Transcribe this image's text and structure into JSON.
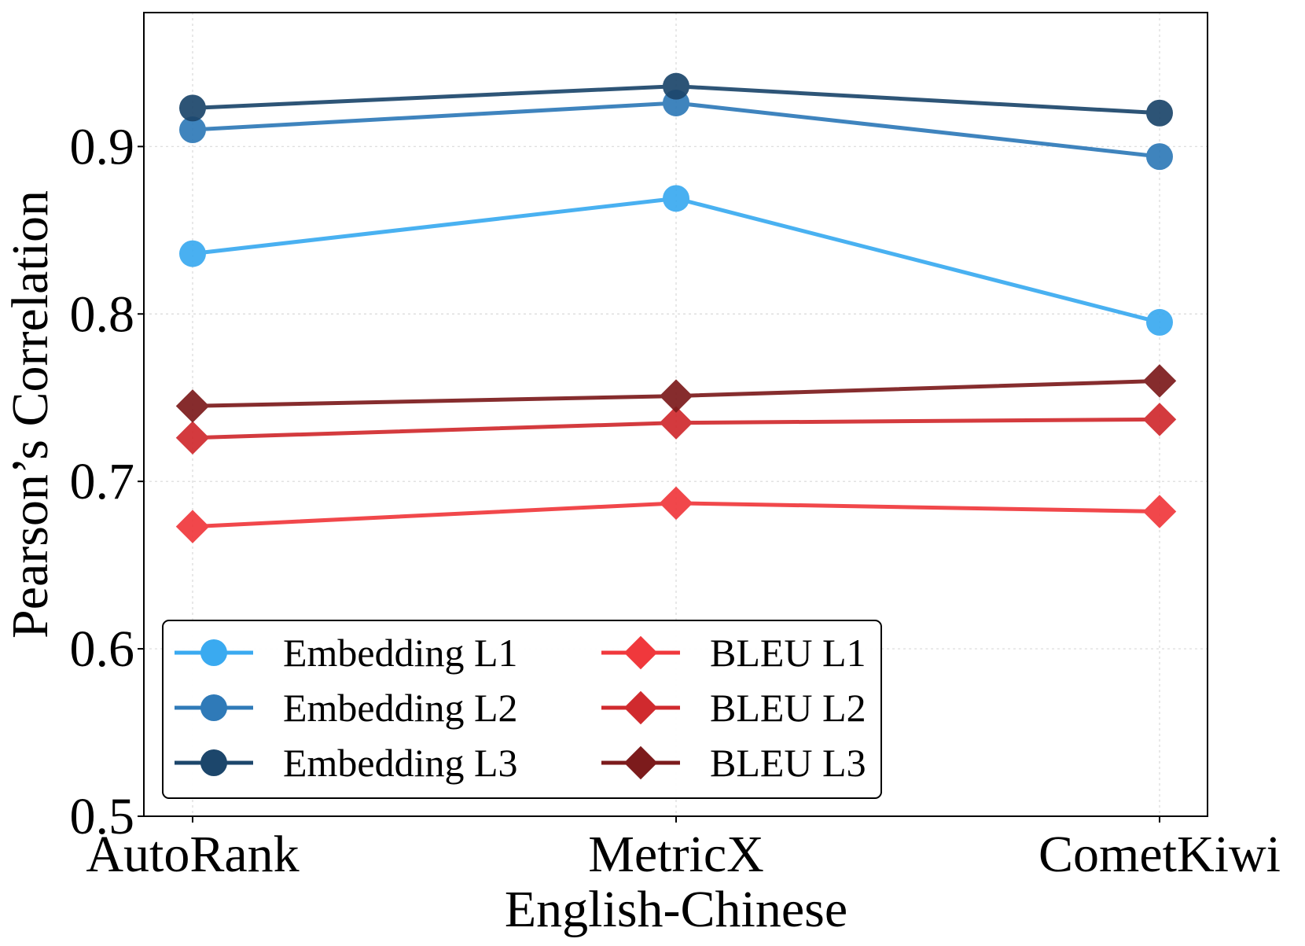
{
  "chart_data": {
    "type": "line",
    "title": "",
    "xlabel": "English-Chinese",
    "ylabel": "Pearson’s Correlation",
    "categories": [
      "AutoRank",
      "MetricX",
      "CometKiwi"
    ],
    "ylim": [
      0.5,
      0.98
    ],
    "yticks": [
      "0.5",
      "0.6",
      "0.7",
      "0.8",
      "0.9"
    ],
    "ytick_values": [
      0.5,
      0.6,
      0.7,
      0.8,
      0.9
    ],
    "grid": true,
    "legend_position": "bottom-left",
    "series": [
      {
        "name": "Embedding L1",
        "values": [
          0.836,
          0.869,
          0.795
        ],
        "color": "#3aaaf0",
        "marker": "circle"
      },
      {
        "name": "Embedding L2",
        "values": [
          0.91,
          0.926,
          0.894
        ],
        "color": "#2f7ab8",
        "marker": "circle"
      },
      {
        "name": "Embedding L3",
        "values": [
          0.923,
          0.936,
          0.92
        ],
        "color": "#1c466b",
        "marker": "circle"
      },
      {
        "name": "BLEU L1",
        "values": [
          0.673,
          0.687,
          0.682
        ],
        "color": "#f0383c",
        "marker": "diamond"
      },
      {
        "name": "BLEU L2",
        "values": [
          0.726,
          0.735,
          0.737
        ],
        "color": "#d02a2e",
        "marker": "diamond"
      },
      {
        "name": "BLEU L3",
        "values": [
          0.745,
          0.751,
          0.76
        ],
        "color": "#7c1b1c",
        "marker": "diamond"
      }
    ]
  }
}
